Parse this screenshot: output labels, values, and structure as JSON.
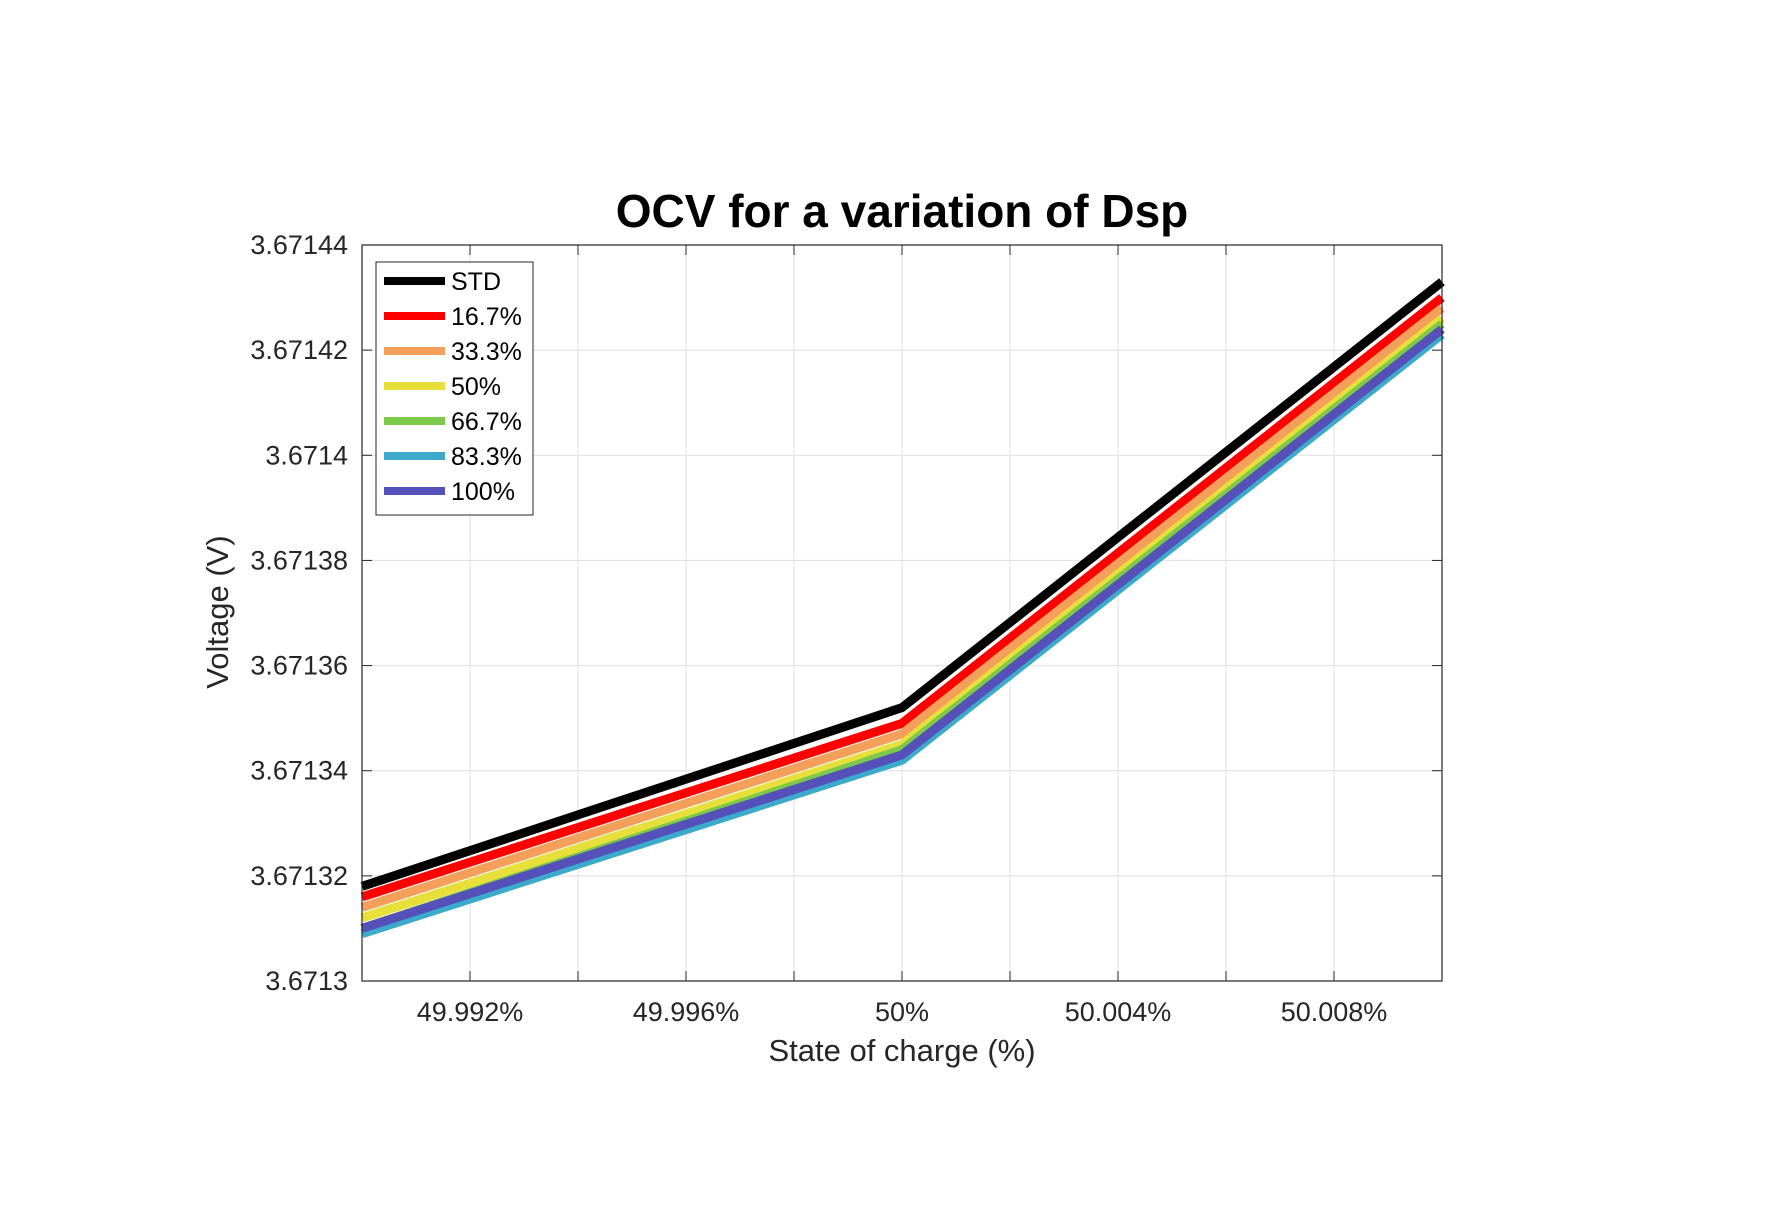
{
  "chart_data": {
    "type": "line",
    "title": "OCV for a variation of Dsp",
    "xlabel": "State of charge (%)",
    "ylabel": "Voltage (V)",
    "xlim": [
      49.99,
      50.01
    ],
    "ylim": [
      3.6713,
      3.67144
    ],
    "x_ticks": [
      49.992,
      49.996,
      50.0,
      50.004,
      50.008
    ],
    "x_tick_labels": [
      "49.992%",
      "49.996%",
      "50%",
      "50.004%",
      "50.008%"
    ],
    "y_ticks": [
      3.6713,
      3.67132,
      3.67134,
      3.67136,
      3.67138,
      3.6714,
      3.67142,
      3.67144
    ],
    "y_tick_labels": [
      "3.6713",
      "3.67132",
      "3.67134",
      "3.67136",
      "3.67138",
      "3.6714",
      "3.67142",
      "3.67144"
    ],
    "grid": true,
    "legend_position": "top-left",
    "x": [
      49.99,
      50.0,
      50.01
    ],
    "series": [
      {
        "name": "STD",
        "color": "#000000",
        "values": [
          3.671318,
          3.671352,
          3.671433
        ]
      },
      {
        "name": "16.7%",
        "color": "#ff0000",
        "values": [
          3.671316,
          3.671349,
          3.67143
        ]
      },
      {
        "name": "33.3%",
        "color": "#f4a05b",
        "values": [
          3.671314,
          3.671347,
          3.671428
        ]
      },
      {
        "name": "50%",
        "color": "#e8e03a",
        "values": [
          3.671312,
          3.671345,
          3.671426
        ]
      },
      {
        "name": "66.7%",
        "color": "#7dc94a",
        "values": [
          3.67131,
          3.671344,
          3.671425
        ]
      },
      {
        "name": "83.3%",
        "color": "#3caacb",
        "values": [
          3.671309,
          3.671342,
          3.671423
        ]
      },
      {
        "name": "100%",
        "color": "#5551b8",
        "values": [
          3.67131,
          3.671343,
          3.671424
        ]
      }
    ]
  }
}
